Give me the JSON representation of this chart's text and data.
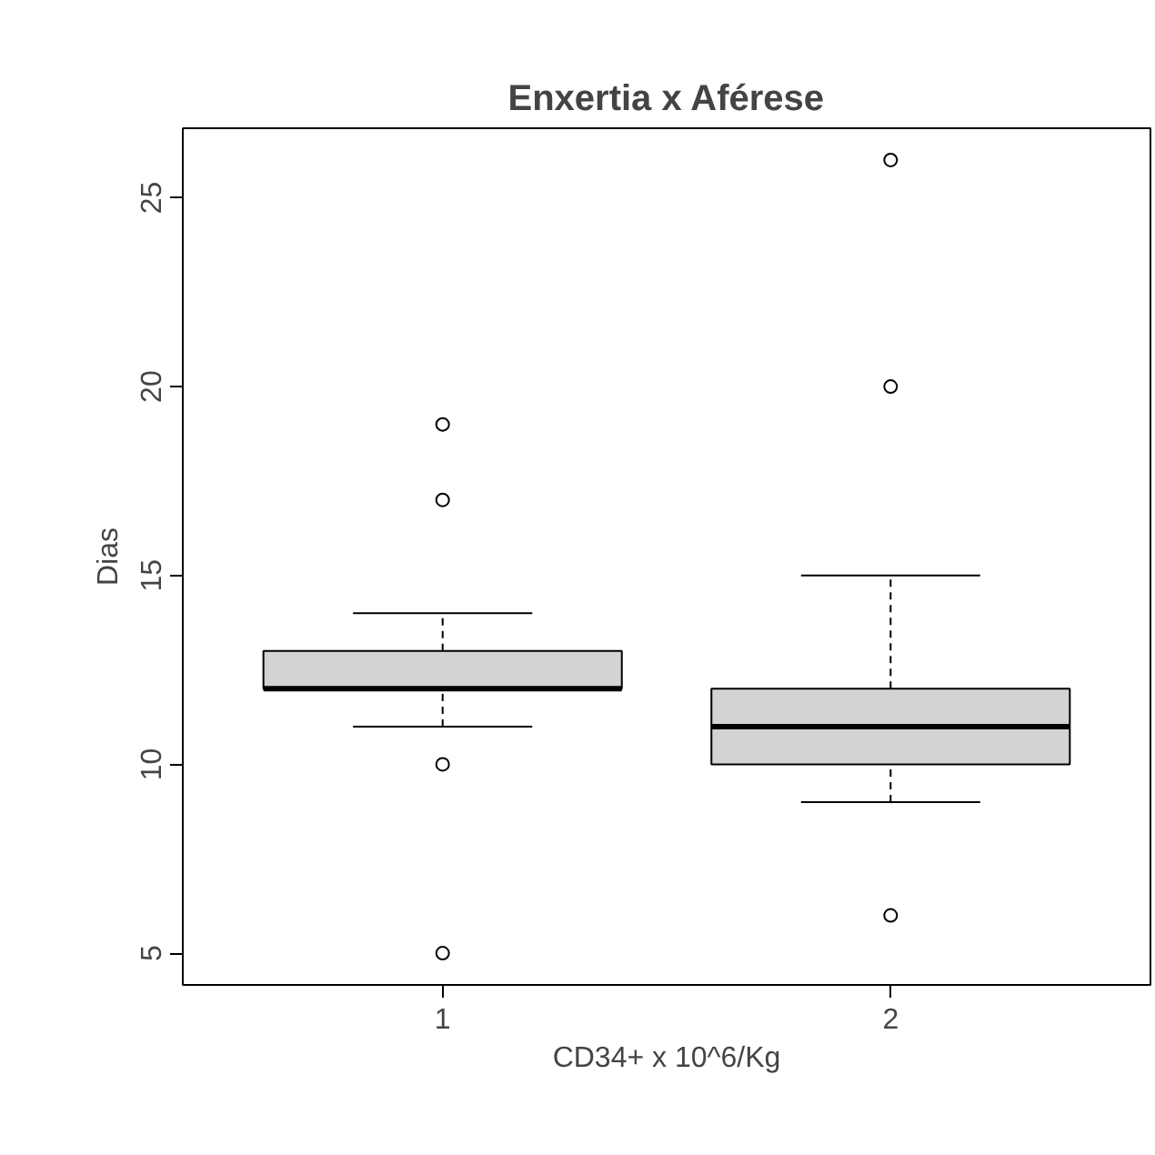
{
  "chart_data": {
    "type": "box",
    "title": "Enxertia x Aférese",
    "xlabel": "CD34+ x 10^6/Kg",
    "ylabel": "Dias",
    "categories": [
      "1",
      "2"
    ],
    "boxes": [
      {
        "low": 11,
        "q1": 12,
        "median": 12,
        "q3": 13,
        "high": 14,
        "outliers": [
          19,
          17,
          10,
          5
        ]
      },
      {
        "low": 9,
        "q1": 10,
        "median": 11,
        "q3": 12,
        "high": 15,
        "outliers": [
          26,
          20,
          6
        ]
      }
    ],
    "color": "#d3d3d3",
    "ylim": [
      4.16,
      26.84
    ],
    "yticks": [
      5,
      10,
      15,
      20,
      25
    ]
  }
}
